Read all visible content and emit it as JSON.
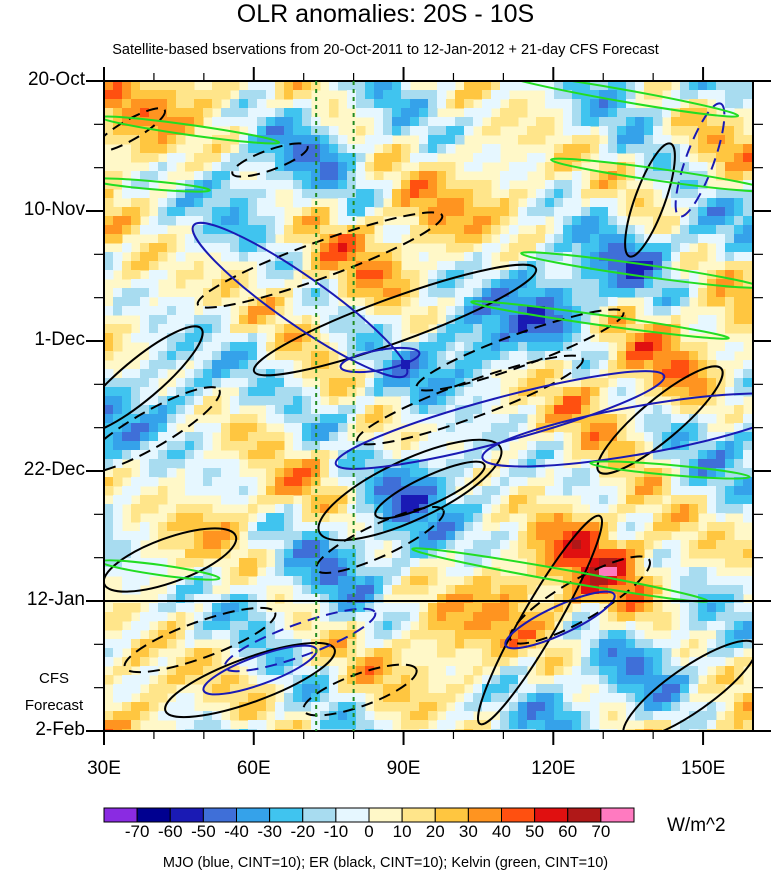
{
  "chart_data": {
    "type": "heatmap",
    "title": "OLR anomalies: 20S - 10S",
    "subtitle": "Satellite-based bservations from 20-Oct-2011 to 12-Jan-2012 + 21-day CFS Forecast",
    "x_ticks": [
      "30E",
      "60E",
      "90E",
      "120E",
      "150E"
    ],
    "x_tick_values": [
      30,
      60,
      90,
      120,
      150
    ],
    "xlim": [
      30,
      160
    ],
    "y_ticks": [
      "20-Oct",
      "10-Nov",
      "1-Dec",
      "22-Dec",
      "12-Jan",
      "2-Feb"
    ],
    "forecast_start": "12-Jan",
    "forecast_label": [
      "CFS",
      "Forecast"
    ],
    "reference_longitudes": [
      72.5,
      80
    ],
    "colorbar": {
      "units": "W/m^2",
      "labels": [
        "-70",
        "-60",
        "-50",
        "-40",
        "-30",
        "-20",
        "-10",
        "0",
        "10",
        "20",
        "30",
        "40",
        "50",
        "60",
        "70"
      ],
      "colors": [
        "#8a2be2",
        "#000090",
        "#1a1ab4",
        "#3f6fd8",
        "#35a2ea",
        "#40c4ef",
        "#a8dcf0",
        "#e6f7ff",
        "#fff8c8",
        "#ffe58a",
        "#ffc640",
        "#ff9420",
        "#ff5010",
        "#e01010",
        "#b01818",
        "#ff7ac0"
      ]
    },
    "footer": "MJO (blue, CINT=10); ER (black, CINT=10); Kelvin (green, CINT=10)"
  }
}
